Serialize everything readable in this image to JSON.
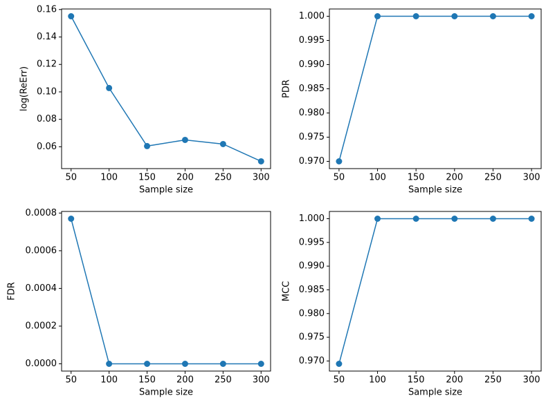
{
  "chart_data": [
    {
      "type": "line",
      "x": [
        50,
        100,
        150,
        200,
        250,
        300
      ],
      "values": [
        0.1551,
        0.1028,
        0.0605,
        0.065,
        0.062,
        0.0494
      ],
      "color": "#1f77b4",
      "xlabel": "Sample size",
      "ylabel": "log(ReErr)",
      "xlim": [
        37.5,
        312.5
      ],
      "ylim": [
        0.0441,
        0.1604
      ],
      "xticks": [
        50,
        100,
        150,
        200,
        250,
        300
      ],
      "yticks": [
        {
          "value": 0.06,
          "label": "0.06"
        },
        {
          "value": 0.08,
          "label": "0.08"
        },
        {
          "value": 0.1,
          "label": "0.10"
        },
        {
          "value": 0.12,
          "label": "0.12"
        },
        {
          "value": 0.14,
          "label": "0.14"
        },
        {
          "value": 0.16,
          "label": "0.16"
        }
      ]
    },
    {
      "type": "line",
      "x": [
        50,
        100,
        150,
        200,
        250,
        300
      ],
      "values": [
        0.97,
        1,
        1,
        1,
        1,
        1
      ],
      "color": "#1f77b4",
      "xlabel": "Sample size",
      "ylabel": "PDR",
      "xlim": [
        37.5,
        312.5
      ],
      "ylim": [
        0.9685,
        1.0015
      ],
      "xticks": [
        50,
        100,
        150,
        200,
        250,
        300
      ],
      "yticks": [
        {
          "value": 0.97,
          "label": "0.970"
        },
        {
          "value": 0.975,
          "label": "0.975"
        },
        {
          "value": 0.98,
          "label": "0.980"
        },
        {
          "value": 0.985,
          "label": "0.985"
        },
        {
          "value": 0.99,
          "label": "0.990"
        },
        {
          "value": 0.995,
          "label": "0.995"
        },
        {
          "value": 1,
          "label": "1.000"
        }
      ]
    },
    {
      "type": "line",
      "x": [
        50,
        100,
        150,
        200,
        250,
        300
      ],
      "values": [
        0.00077,
        0,
        0,
        0,
        0,
        0
      ],
      "color": "#1f77b4",
      "xlabel": "Sample size",
      "ylabel": "FDR",
      "xlim": [
        37.5,
        312.5
      ],
      "ylim": [
        -3.85e-05,
        0.0008085
      ],
      "xticks": [
        50,
        100,
        150,
        200,
        250,
        300
      ],
      "yticks": [
        {
          "value": 0,
          "label": "0.0000"
        },
        {
          "value": 0.0002,
          "label": "0.0002"
        },
        {
          "value": 0.0004,
          "label": "0.0004"
        },
        {
          "value": 0.0006,
          "label": "0.0006"
        },
        {
          "value": 0.0008,
          "label": "0.0008"
        }
      ]
    },
    {
      "type": "line",
      "x": [
        50,
        100,
        150,
        200,
        250,
        300
      ],
      "values": [
        0.9694,
        1,
        1,
        1,
        1,
        1
      ],
      "color": "#1f77b4",
      "xlabel": "Sample size",
      "ylabel": "MCC",
      "xlim": [
        37.5,
        312.5
      ],
      "ylim": [
        0.96787,
        1.00153
      ],
      "xticks": [
        50,
        100,
        150,
        200,
        250,
        300
      ],
      "yticks": [
        {
          "value": 0.97,
          "label": "0.970"
        },
        {
          "value": 0.975,
          "label": "0.975"
        },
        {
          "value": 0.98,
          "label": "0.980"
        },
        {
          "value": 0.985,
          "label": "0.985"
        },
        {
          "value": 0.99,
          "label": "0.990"
        },
        {
          "value": 0.995,
          "label": "0.995"
        },
        {
          "value": 1,
          "label": "1.000"
        }
      ]
    }
  ]
}
